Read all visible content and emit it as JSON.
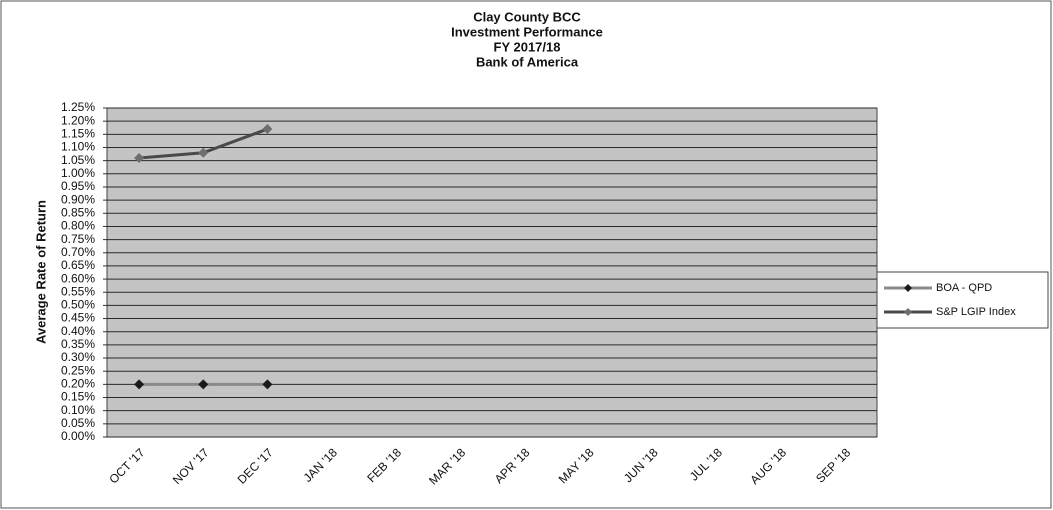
{
  "chart_data": {
    "type": "line",
    "title": [
      "Clay County BCC",
      "Investment Performance",
      "FY 2017/18",
      "Bank of America"
    ],
    "y_label": "Average Rate of Return",
    "categories": [
      "OCT '17",
      "NOV '17",
      "DEC '17",
      "JAN '18",
      "FEB '18",
      "MAR '18",
      "APR '18",
      "MAY '18",
      "JUN '18",
      "JUL '18",
      "AUG '18",
      "SEP '18"
    ],
    "series": [
      {
        "name": "BOA - QPD",
        "color": "#8a8a8a",
        "marker_color": "#1a1a1a",
        "values": [
          0.2,
          0.2,
          0.2,
          null,
          null,
          null,
          null,
          null,
          null,
          null,
          null,
          null
        ]
      },
      {
        "name": "S&P LGIP Index",
        "color": "#4a4a4a",
        "marker_color": "#6e6e6e",
        "values": [
          1.06,
          1.08,
          1.17,
          null,
          null,
          null,
          null,
          null,
          null,
          null,
          null,
          null
        ]
      }
    ],
    "ylim": [
      0,
      1.25
    ],
    "yticks": [
      {
        "value": 0,
        "label": "0.00%"
      },
      {
        "value": 0.05,
        "label": "0.05%"
      },
      {
        "value": 0.1,
        "label": "0.10%"
      },
      {
        "value": 0.15,
        "label": "0.15%"
      },
      {
        "value": 0.2,
        "label": "0.20%"
      },
      {
        "value": 0.25,
        "label": "0.25%"
      },
      {
        "value": 0.3,
        "label": "0.30%"
      },
      {
        "value": 0.35,
        "label": "0.35%"
      },
      {
        "value": 0.4,
        "label": "0.40%"
      },
      {
        "value": 0.45,
        "label": "0.45%"
      },
      {
        "value": 0.5,
        "label": "0.50%"
      },
      {
        "value": 0.55,
        "label": "0.55%"
      },
      {
        "value": 0.6,
        "label": "0.60%"
      },
      {
        "value": 0.65,
        "label": "0.65%"
      },
      {
        "value": 0.7,
        "label": "0.70%"
      },
      {
        "value": 0.75,
        "label": "0.75%"
      },
      {
        "value": 0.8,
        "label": "0.80%"
      },
      {
        "value": 0.85,
        "label": "0.85%"
      },
      {
        "value": 0.9,
        "label": "0.90%"
      },
      {
        "value": 0.95,
        "label": "0.95%"
      },
      {
        "value": 1.0,
        "label": "1.00%"
      },
      {
        "value": 1.05,
        "label": "1.05%"
      },
      {
        "value": 1.1,
        "label": "1.10%"
      },
      {
        "value": 1.15,
        "label": "1.15%"
      },
      {
        "value": 1.2,
        "label": "1.20%"
      },
      {
        "value": 1.25,
        "label": "1.25%"
      }
    ],
    "grid": true,
    "legend": "right"
  }
}
